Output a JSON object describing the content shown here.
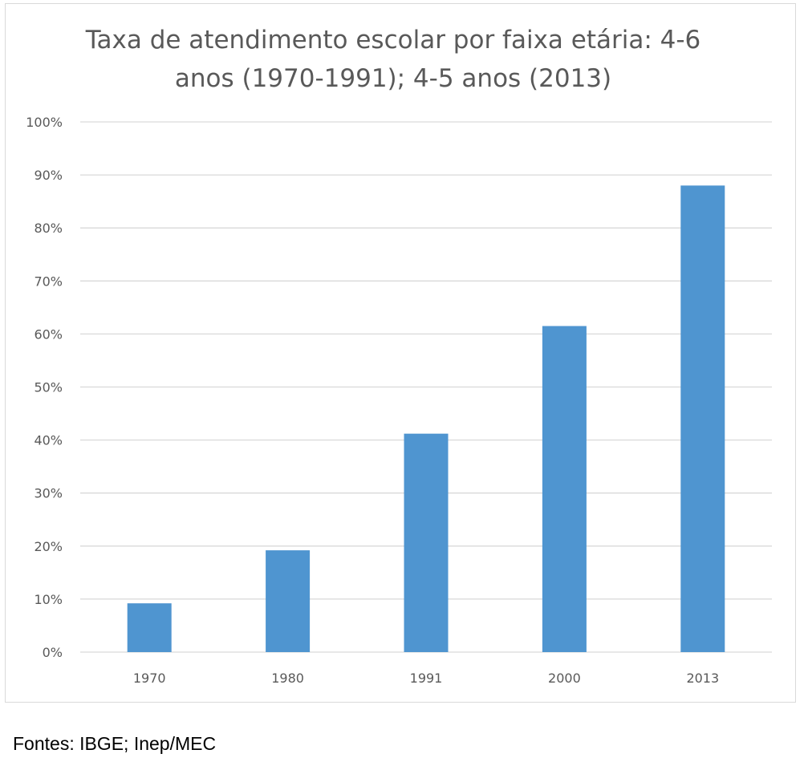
{
  "chart_data": {
    "type": "bar",
    "title": "Taxa de atendimento escolar por faixa etária: 4-6 anos (1970-1991); 4-5 anos (2013)",
    "title_lines": [
      "Taxa de atendimento escolar por faixa etária: 4-6",
      "anos (1970-1991); 4-5 anos (2013)"
    ],
    "categories": [
      "1970",
      "1980",
      "1991",
      "2000",
      "2013"
    ],
    "values": [
      9.2,
      19.2,
      41.2,
      61.5,
      88.0
    ],
    "unit": "%",
    "ylim": [
      0,
      100
    ],
    "yticks": [
      "0%",
      "10%",
      "20%",
      "30%",
      "40%",
      "50%",
      "60%",
      "70%",
      "80%",
      "90%",
      "100%"
    ],
    "grid": true,
    "legend": "none",
    "bar_color": "#4f95d0"
  },
  "source_note": "Fontes: IBGE; Inep/MEC"
}
